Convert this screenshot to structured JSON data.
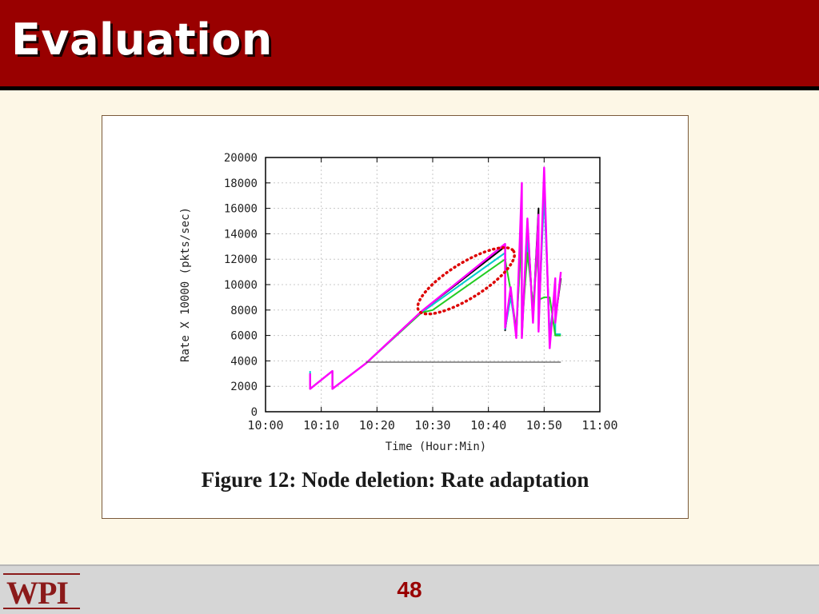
{
  "slide": {
    "title": "Evaluation",
    "page_number": "48",
    "logo_text": "WPI",
    "colors": {
      "header": "#990000",
      "background": "#fdf7e6",
      "footer": "#d6d6d6",
      "page_number": "#990000"
    }
  },
  "chart_data": {
    "type": "line",
    "caption": "Figure 12: Node deletion: Rate adaptation",
    "xlabel": "Time (Hour:Min)",
    "ylabel": "Rate X 10000 (pkts/sec)",
    "x_ticks": [
      "10:00",
      "10:10",
      "10:20",
      "10:30",
      "10:40",
      "10:50",
      "11:00"
    ],
    "y_ticks": [
      "0",
      "2000",
      "4000",
      "6000",
      "8000",
      "10000",
      "12000",
      "14000",
      "16000",
      "18000",
      "20000"
    ],
    "xlim": [
      "10:00",
      "11:00"
    ],
    "ylim": [
      0,
      20000
    ],
    "grid": true,
    "series": [
      {
        "color": "#000000",
        "x": [
          "10:08",
          "10:08",
          "10:12",
          "10:12",
          "10:18",
          "10:28",
          "10:43",
          "10:43",
          "10:44",
          "10:45",
          "10:46",
          "10:46",
          "10:47",
          "10:48",
          "10:49",
          "10:49",
          "10:50",
          "10:51",
          "10:52",
          "10:52",
          "10:53"
        ],
        "values": [
          3000,
          1800,
          3200,
          1800,
          3800,
          7900,
          13000,
          6400,
          9500,
          6000,
          16000,
          5800,
          15000,
          7500,
          16000,
          6500,
          18500,
          5600,
          10000,
          7200,
          10500
        ]
      },
      {
        "color": "#00cccc",
        "x": [
          "10:08",
          "10:08",
          "10:12",
          "10:12",
          "10:18",
          "10:28",
          "10:43",
          "10:43",
          "10:44",
          "10:45",
          "10:46",
          "10:46",
          "10:47",
          "10:48",
          "10:49",
          "10:49",
          "10:50",
          "10:51",
          "10:52",
          "10:52",
          "10:53"
        ],
        "values": [
          3200,
          1800,
          3200,
          1800,
          3800,
          7800,
          12500,
          6500,
          9000,
          6200,
          14500,
          6000,
          13500,
          7800,
          15000,
          7000,
          17000,
          6200,
          9500,
          6100,
          6100
        ]
      },
      {
        "color": "#22cc22",
        "x": [
          "10:08",
          "10:08",
          "10:12",
          "10:12",
          "10:18",
          "10:28",
          "10:30",
          "10:43",
          "10:44",
          "10:45",
          "10:46",
          "10:46",
          "10:47",
          "10:48",
          "10:49",
          "10:49",
          "10:50",
          "10:51",
          "10:52",
          "10:52",
          "10:53"
        ],
        "values": [
          3000,
          1800,
          3200,
          1800,
          3800,
          7800,
          8000,
          12000,
          9500,
          6500,
          14000,
          6500,
          12500,
          8500,
          13000,
          8800,
          9000,
          9000,
          6000,
          6000,
          6000
        ]
      },
      {
        "color": "#ff00ff",
        "x": [
          "10:08",
          "10:08",
          "10:12",
          "10:12",
          "10:18",
          "10:28",
          "10:43",
          "10:43",
          "10:44",
          "10:45",
          "10:46",
          "10:46",
          "10:47",
          "10:48",
          "10:49",
          "10:49",
          "10:50",
          "10:51",
          "10:52",
          "10:52",
          "10:53"
        ],
        "values": [
          3000,
          1800,
          3200,
          1800,
          3800,
          7900,
          13200,
          6600,
          9800,
          5800,
          18000,
          5800,
          15200,
          7000,
          15500,
          6300,
          19200,
          5000,
          10500,
          7000,
          11000
        ]
      },
      {
        "color": "#555555",
        "x": [
          "10:18",
          "10:53"
        ],
        "values": [
          3900,
          3900
        ]
      }
    ],
    "annotations": [
      {
        "type": "ellipse",
        "style": "dotted",
        "color": "#dd0000"
      }
    ]
  }
}
